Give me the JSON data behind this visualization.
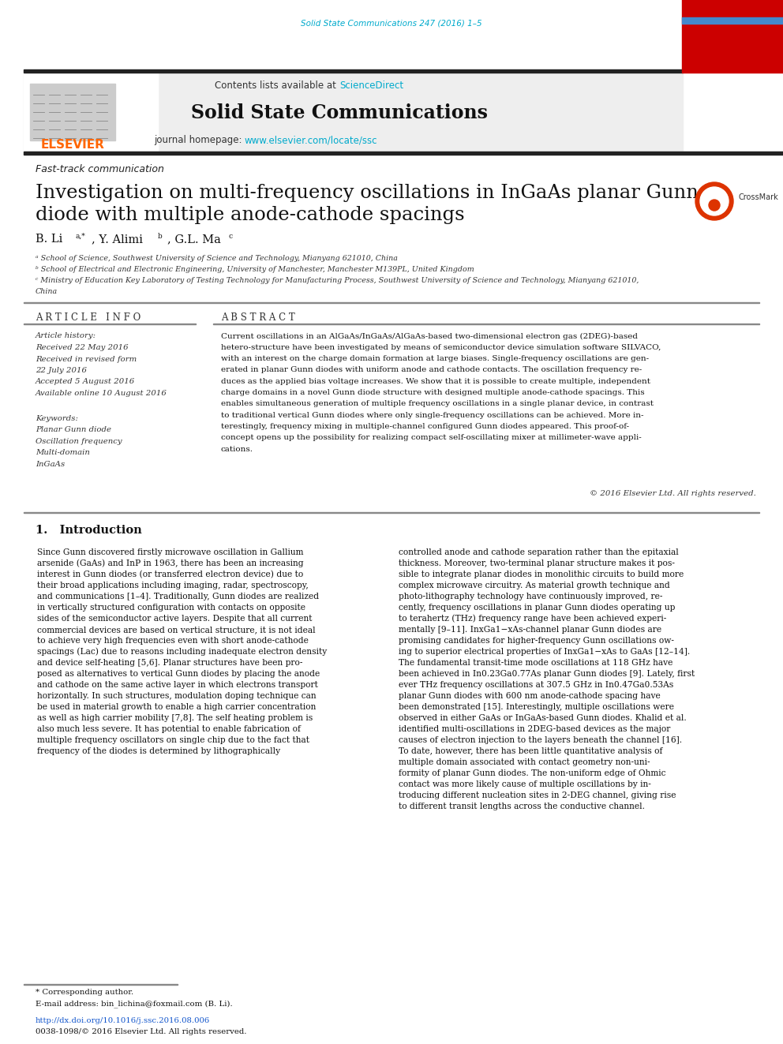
{
  "page_background": "#ffffff",
  "top_journal_ref": "Solid State Communications 247 (2016) 1–5",
  "top_journal_ref_color": "#00aacc",
  "header_bg": "#eeeeee",
  "header_border_color": "#333333",
  "header_text_contents": "Contents lists available at",
  "header_sciencedirect": "ScienceDirect",
  "header_sciencedirect_color": "#00aacc",
  "journal_title": "Solid State Communications",
  "journal_homepage_text": "journal homepage:",
  "journal_homepage_url": "www.elsevier.com/locate/ssc",
  "journal_homepage_url_color": "#00aacc",
  "elsevier_color": "#ff6600",
  "red_bar_color": "#cc0000",
  "dark_bar_color": "#222222",
  "article_type": "Fast-track communication",
  "paper_title_line1": "Investigation on multi-frequency oscillations in InGaAs planar Gunn",
  "paper_title_line2": "diode with multiple anode-cathode spacings",
  "affil_a": "ᵃ School of Science, Southwest University of Science and Technology, Mianyang 621010, China",
  "affil_b": "ᵇ School of Electrical and Electronic Engineering, University of Manchester, Manchester M139PL, United Kingdom",
  "affil_c": "ᶜ Ministry of Education Key Laboratory of Testing Technology for Manufacturing Process, Southwest University of Science and Technology, Mianyang 621010,",
  "affil_c2": "China",
  "article_info_title": "A R T I C L E   I N F O",
  "abstract_title": "A B S T R A C T",
  "article_history_label": "Article history:",
  "received": "Received 22 May 2016",
  "received_revised": "Received in revised form",
  "received_revised2": "22 July 2016",
  "accepted": "Accepted 5 August 2016",
  "available_online": "Available online 10 August 2016",
  "keywords_label": "Keywords:",
  "kw1": "Planar Gunn diode",
  "kw2": "Oscillation frequency",
  "kw3": "Multi-domain",
  "kw4": "InGaAs",
  "abstract_text": "Current oscillations in an AlGaAs/InGaAs/AlGaAs-based two-dimensional electron gas (2DEG)-based\nhetero-structure have been investigated by means of semiconductor device simulation software SILVACO,\nwith an interest on the charge domain formation at large biases. Single-frequency oscillations are gen-\nerated in planar Gunn diodes with uniform anode and cathode contacts. The oscillation frequency re-\nduces as the applied bias voltage increases. We show that it is possible to create multiple, independent\ncharge domains in a novel Gunn diode structure with designed multiple anode-cathode spacings. This\nenables simultaneous generation of multiple frequency oscillations in a single planar device, in contrast\nto traditional vertical Gunn diodes where only single-frequency oscillations can be achieved. More in-\nterestingly, frequency mixing in multiple-channel configured Gunn diodes appeared. This proof-of-\nconcept opens up the possibility for realizing compact self-oscillating mixer at millimeter-wave appli-\ncations.",
  "copyright_text": "© 2016 Elsevier Ltd. All rights reserved.",
  "intro_title": "1.   Introduction",
  "intro_col1": "Since Gunn discovered firstly microwave oscillation in Gallium\narsenide (GaAs) and InP in 1963, there has been an increasing\ninterest in Gunn diodes (or transferred electron device) due to\ntheir broad applications including imaging, radar, spectroscopy,\nand communications [1–4]. Traditionally, Gunn diodes are realized\nin vertically structured configuration with contacts on opposite\nsides of the semiconductor active layers. Despite that all current\ncommercial devices are based on vertical structure, it is not ideal\nto achieve very high frequencies even with short anode-cathode\nspacings (Lac) due to reasons including inadequate electron density\nand device self-heating [5,6]. Planar structures have been pro-\nposed as alternatives to vertical Gunn diodes by placing the anode\nand cathode on the same active layer in which electrons transport\nhorizontally. In such structures, modulation doping technique can\nbe used in material growth to enable a high carrier concentration\nas well as high carrier mobility [7,8]. The self heating problem is\nalso much less severe. It has potential to enable fabrication of\nmultiple frequency oscillators on single chip due to the fact that\nfrequency of the diodes is determined by lithographically",
  "intro_col2": "controlled anode and cathode separation rather than the epitaxial\nthickness. Moreover, two-terminal planar structure makes it pos-\nsible to integrate planar diodes in monolithic circuits to build more\ncomplex microwave circuitry. As material growth technique and\nphoto-lithography technology have continuously improved, re-\ncently, frequency oscillations in planar Gunn diodes operating up\nto terahertz (THz) frequency range have been achieved experi-\nmentally [9–11]. InxGa1−xAs-channel planar Gunn diodes are\npromising candidates for higher-frequency Gunn oscillations ow-\ning to superior electrical properties of InxGa1−xAs to GaAs [12–14].\nThe fundamental transit-time mode oscillations at 118 GHz have\nbeen achieved in In0.23Ga0.77As planar Gunn diodes [9]. Lately, first\never THz frequency oscillations at 307.5 GHz in In0.47Ga0.53As\nplanar Gunn diodes with 600 nm anode-cathode spacing have\nbeen demonstrated [15]. Interestingly, multiple oscillations were\nobserved in either GaAs or InGaAs-based Gunn diodes. Khalid et al.\nidentified multi-oscillations in 2DEG-based devices as the major\ncauses of electron injection to the layers beneath the channel [16].\nTo date, however, there has been little quantitative analysis of\nmultiple domain associated with contact geometry non-uni-\nformity of planar Gunn diodes. The non-uniform edge of Ohmic\ncontact was more likely cause of multiple oscillations by in-\ntroducing different nucleation sites in 2-DEG channel, giving rise\nto different transit lengths across the conductive channel.",
  "footnote_star": "* Corresponding author.",
  "footnote_email": "E-mail address: bin_lichina@foxmail.com (B. Li).",
  "footnote_doi": "http://dx.doi.org/10.1016/j.ssc.2016.08.006",
  "footnote_issn": "0038-1098/© 2016 Elsevier Ltd. All rights reserved."
}
